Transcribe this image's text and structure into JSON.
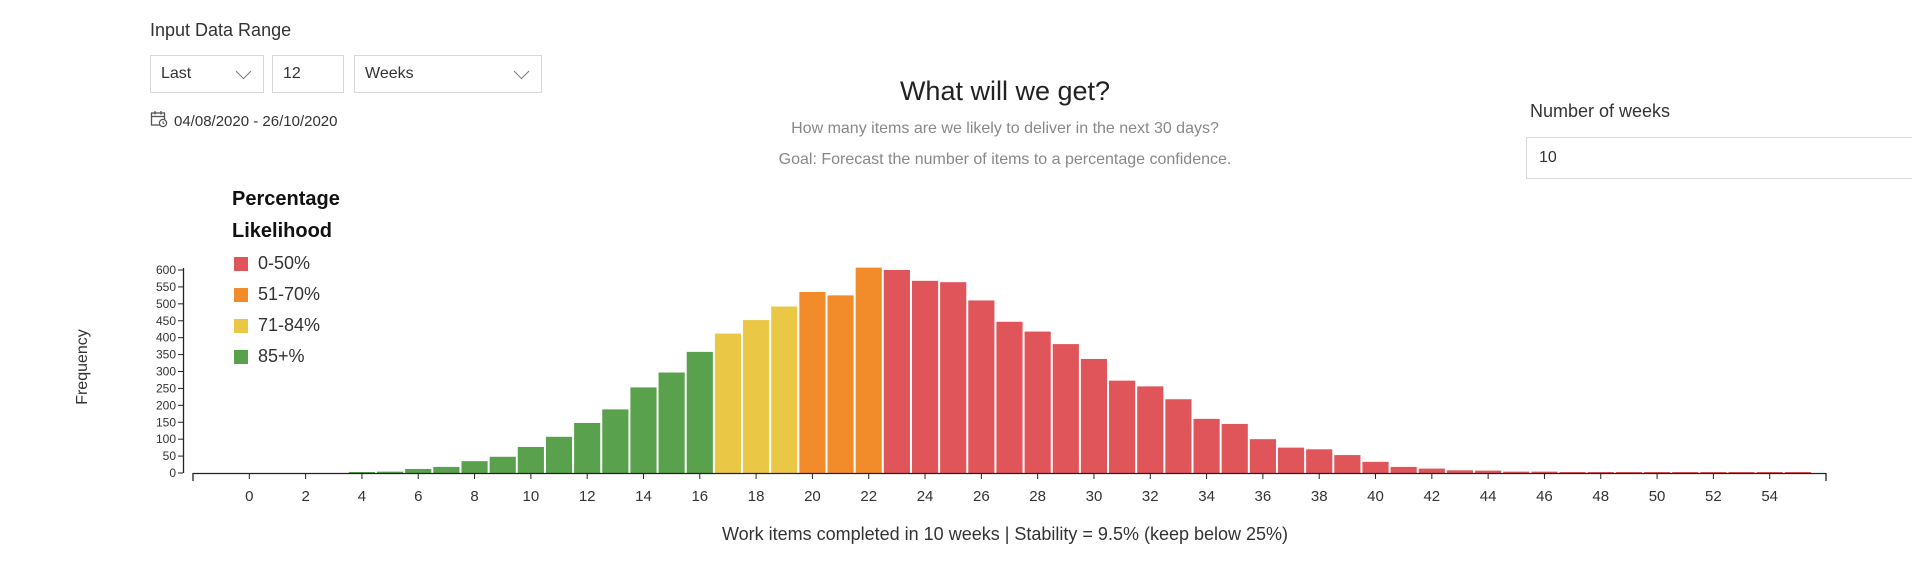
{
  "input_range": {
    "title": "Input Data Range",
    "period_select": "Last",
    "count": "12",
    "unit_select": "Weeks",
    "date_range": "04/08/2020 - 26/10/2020"
  },
  "header": {
    "title": "What will we get?",
    "subtitle": "How many items are we likely to deliver in the next 30 days?",
    "goal": "Goal: Forecast the number of items to a percentage confidence."
  },
  "weeks": {
    "label": "Number of weeks",
    "value": "10"
  },
  "legend": {
    "title_line1": "Percentage",
    "title_line2": "Likelihood",
    "items": [
      {
        "label": "0-50%",
        "color": "#e0555a"
      },
      {
        "label": "51-70%",
        "color": "#f28c2a"
      },
      {
        "label": "71-84%",
        "color": "#eac845"
      },
      {
        "label": "85+%",
        "color": "#5aa14d"
      }
    ]
  },
  "chart_data": {
    "type": "bar",
    "xlabel": "Work items completed in 10 weeks | Stability = 9.5% (keep below 25%)",
    "ylabel": "Frequency",
    "xlim": [
      -2,
      56
    ],
    "ylim": [
      0,
      600
    ],
    "x_ticks": [
      0,
      2,
      4,
      6,
      8,
      10,
      12,
      14,
      16,
      18,
      20,
      22,
      24,
      26,
      28,
      30,
      32,
      34,
      36,
      38,
      40,
      42,
      44,
      46,
      48,
      50,
      52,
      54
    ],
    "y_ticks": [
      0,
      50,
      100,
      150,
      200,
      250,
      300,
      350,
      400,
      450,
      500,
      550,
      600
    ],
    "bars": [
      {
        "x": 4,
        "value": 3,
        "band": "85+%"
      },
      {
        "x": 5,
        "value": 4,
        "band": "85+%"
      },
      {
        "x": 6,
        "value": 12,
        "band": "85+%"
      },
      {
        "x": 7,
        "value": 18,
        "band": "85+%"
      },
      {
        "x": 8,
        "value": 35,
        "band": "85+%"
      },
      {
        "x": 9,
        "value": 48,
        "band": "85+%"
      },
      {
        "x": 10,
        "value": 77,
        "band": "85+%"
      },
      {
        "x": 11,
        "value": 107,
        "band": "85+%"
      },
      {
        "x": 12,
        "value": 148,
        "band": "85+%"
      },
      {
        "x": 13,
        "value": 188,
        "band": "85+%"
      },
      {
        "x": 14,
        "value": 253,
        "band": "85+%"
      },
      {
        "x": 15,
        "value": 297,
        "band": "85+%"
      },
      {
        "x": 16,
        "value": 358,
        "band": "85+%"
      },
      {
        "x": 17,
        "value": 412,
        "band": "71-84%"
      },
      {
        "x": 18,
        "value": 452,
        "band": "71-84%"
      },
      {
        "x": 19,
        "value": 492,
        "band": "71-84%"
      },
      {
        "x": 20,
        "value": 535,
        "band": "51-70%"
      },
      {
        "x": 21,
        "value": 525,
        "band": "51-70%"
      },
      {
        "x": 22,
        "value": 607,
        "band": "51-70%"
      },
      {
        "x": 23,
        "value": 600,
        "band": "0-50%"
      },
      {
        "x": 24,
        "value": 568,
        "band": "0-50%"
      },
      {
        "x": 25,
        "value": 564,
        "band": "0-50%"
      },
      {
        "x": 26,
        "value": 510,
        "band": "0-50%"
      },
      {
        "x": 27,
        "value": 447,
        "band": "0-50%"
      },
      {
        "x": 28,
        "value": 418,
        "band": "0-50%"
      },
      {
        "x": 29,
        "value": 381,
        "band": "0-50%"
      },
      {
        "x": 30,
        "value": 337,
        "band": "0-50%"
      },
      {
        "x": 31,
        "value": 273,
        "band": "0-50%"
      },
      {
        "x": 32,
        "value": 256,
        "band": "0-50%"
      },
      {
        "x": 33,
        "value": 218,
        "band": "0-50%"
      },
      {
        "x": 34,
        "value": 160,
        "band": "0-50%"
      },
      {
        "x": 35,
        "value": 145,
        "band": "0-50%"
      },
      {
        "x": 36,
        "value": 100,
        "band": "0-50%"
      },
      {
        "x": 37,
        "value": 75,
        "band": "0-50%"
      },
      {
        "x": 38,
        "value": 70,
        "band": "0-50%"
      },
      {
        "x": 39,
        "value": 53,
        "band": "0-50%"
      },
      {
        "x": 40,
        "value": 33,
        "band": "0-50%"
      },
      {
        "x": 41,
        "value": 18,
        "band": "0-50%"
      },
      {
        "x": 42,
        "value": 13,
        "band": "0-50%"
      },
      {
        "x": 43,
        "value": 8,
        "band": "0-50%"
      },
      {
        "x": 44,
        "value": 7,
        "band": "0-50%"
      },
      {
        "x": 45,
        "value": 4,
        "band": "0-50%"
      },
      {
        "x": 46,
        "value": 4,
        "band": "0-50%"
      },
      {
        "x": 47,
        "value": 2,
        "band": "0-50%"
      },
      {
        "x": 48,
        "value": 1,
        "band": "0-50%"
      },
      {
        "x": 49,
        "value": 1,
        "band": "0-50%"
      },
      {
        "x": 50,
        "value": 1,
        "band": "0-50%"
      },
      {
        "x": 51,
        "value": 1,
        "band": "0-50%"
      },
      {
        "x": 52,
        "value": 1,
        "band": "0-50%"
      },
      {
        "x": 53,
        "value": 1,
        "band": "0-50%"
      },
      {
        "x": 54,
        "value": 1,
        "band": "0-50%"
      },
      {
        "x": 55,
        "value": 1,
        "band": "0-50%"
      }
    ]
  }
}
